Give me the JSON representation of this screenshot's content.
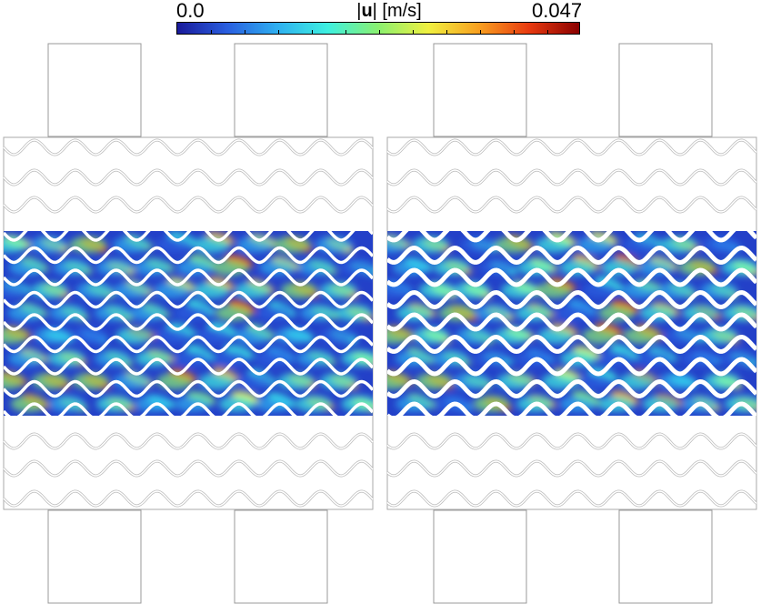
{
  "colorbar": {
    "min_label": "0.0",
    "max_label": "0.047",
    "title_prefix": "|",
    "title_var": "u",
    "title_suffix": "| [m/s]",
    "colors": [
      "#1a1a9a",
      "#2a5fe0",
      "#2fb0f0",
      "#3ef0e0",
      "#8af070",
      "#f0f040",
      "#f8a020",
      "#e83a10",
      "#8a0000"
    ]
  },
  "field": {
    "quantity": "velocity magnitude",
    "min": 0.0,
    "max": 0.047,
    "units": "m/s"
  },
  "panels": [
    {
      "name": "left-domain"
    },
    {
      "name": "right-domain"
    }
  ]
}
